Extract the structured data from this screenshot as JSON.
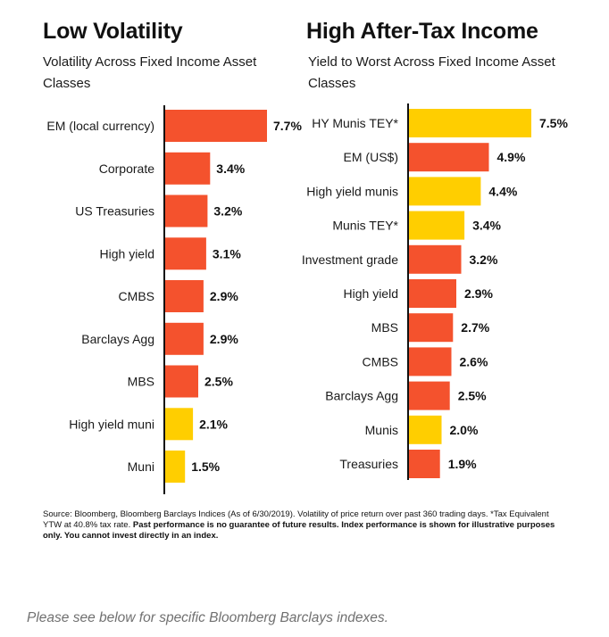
{
  "colors": {
    "orange": "#F4522D",
    "yellow": "#FFCE00",
    "text": "#111111"
  },
  "chart_data": [
    {
      "type": "bar",
      "orientation": "horizontal",
      "title": "Low Volatility",
      "subtitle": "Volatility Across Fixed Income Asset Classes",
      "xlim": [
        0,
        7.7
      ],
      "categories": [
        "EM (local currency)",
        "Corporate",
        "US Treasuries",
        "High yield",
        "CMBS",
        "Barclays Agg",
        "MBS",
        "High yield muni",
        "Muni"
      ],
      "values": [
        7.7,
        3.4,
        3.2,
        3.1,
        2.9,
        2.9,
        2.5,
        2.1,
        1.5
      ],
      "labels": [
        "7.7%",
        "3.4%",
        "3.2%",
        "3.1%",
        "2.9%",
        "2.9%",
        "2.5%",
        "2.1%",
        "1.5%"
      ],
      "bar_colors": [
        "orange",
        "orange",
        "orange",
        "orange",
        "orange",
        "orange",
        "orange",
        "yellow",
        "yellow"
      ]
    },
    {
      "type": "bar",
      "orientation": "horizontal",
      "title": "High After-Tax Income",
      "subtitle": "Yield to Worst Across Fixed Income Asset Classes",
      "xlim": [
        0,
        7.5
      ],
      "categories": [
        "HY Munis TEY*",
        "EM (US$)",
        "High yield munis",
        "Munis TEY*",
        "Investment grade",
        "High yield",
        "MBS",
        "CMBS",
        "Barclays Agg",
        "Munis",
        "Treasuries"
      ],
      "values": [
        7.5,
        4.9,
        4.4,
        3.4,
        3.2,
        2.9,
        2.7,
        2.6,
        2.5,
        2.0,
        1.9
      ],
      "labels": [
        "7.5%",
        "4.9%",
        "4.4%",
        "3.4%",
        "3.2%",
        "2.9%",
        "2.7%",
        "2.6%",
        "2.5%",
        "2.0%",
        "1.9%"
      ],
      "bar_colors": [
        "yellow",
        "orange",
        "yellow",
        "yellow",
        "orange",
        "orange",
        "orange",
        "orange",
        "orange",
        "yellow",
        "orange"
      ]
    }
  ],
  "source": {
    "text": "Source: Bloomberg, Bloomberg Barclays Indices (As of 6/30/2019). Volatility of price return over past 360 trading days. *Tax Equivalent YTW at 40.8% tax rate. ",
    "bold": "Past performance is no guarantee of future results.  Index performance is shown for illustrative purposes only.  You cannot invest directly in an index."
  },
  "footer": "Please see below for specific Bloomberg Barclays indexes."
}
